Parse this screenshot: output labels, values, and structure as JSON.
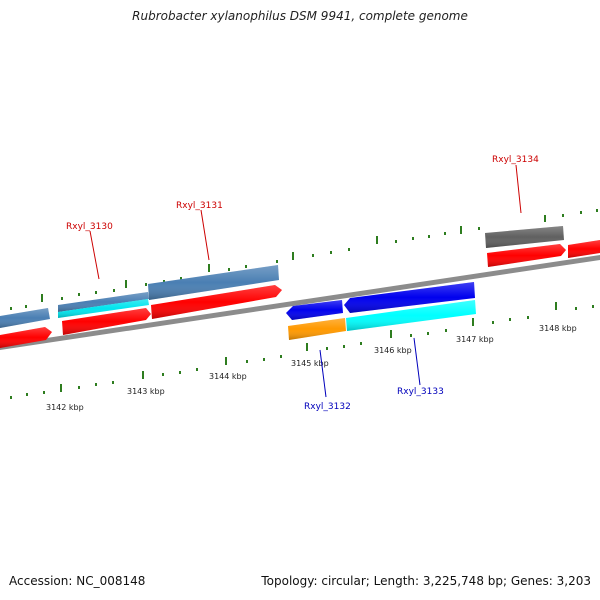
{
  "title": "Rubrobacter xylanophilus DSM 9941, complete genome",
  "footer": {
    "accession": "Accession: NC_008148",
    "summary": "Topology: circular; Length: 3,225,748 bp; Genes: 3,203"
  },
  "colors": {
    "backbone": "#808080",
    "tick": "#2e7d1f",
    "forward_label": "#cc0000",
    "reverse_label": "#0000bb",
    "cds": "#ff0000",
    "gene_steelblue": "#4a7fb3",
    "gene_cyan": "#00ffff",
    "gene_blue": "#0000ee",
    "gene_orange": "#ff9900",
    "gene_grey": "#606060"
  },
  "axis": {
    "labels": [
      "3142 kbp",
      "3143 kbp",
      "3144 kbp",
      "3145 kbp",
      "3146 kbp",
      "3147 kbp",
      "3148 kbp"
    ]
  },
  "genes": [
    {
      "name": "Rxyl_3130",
      "strand": "forward"
    },
    {
      "name": "Rxyl_3131",
      "strand": "forward"
    },
    {
      "name": "Rxyl_3132",
      "strand": "reverse"
    },
    {
      "name": "Rxyl_3133",
      "strand": "reverse"
    },
    {
      "name": "Rxyl_3134",
      "strand": "forward"
    }
  ]
}
